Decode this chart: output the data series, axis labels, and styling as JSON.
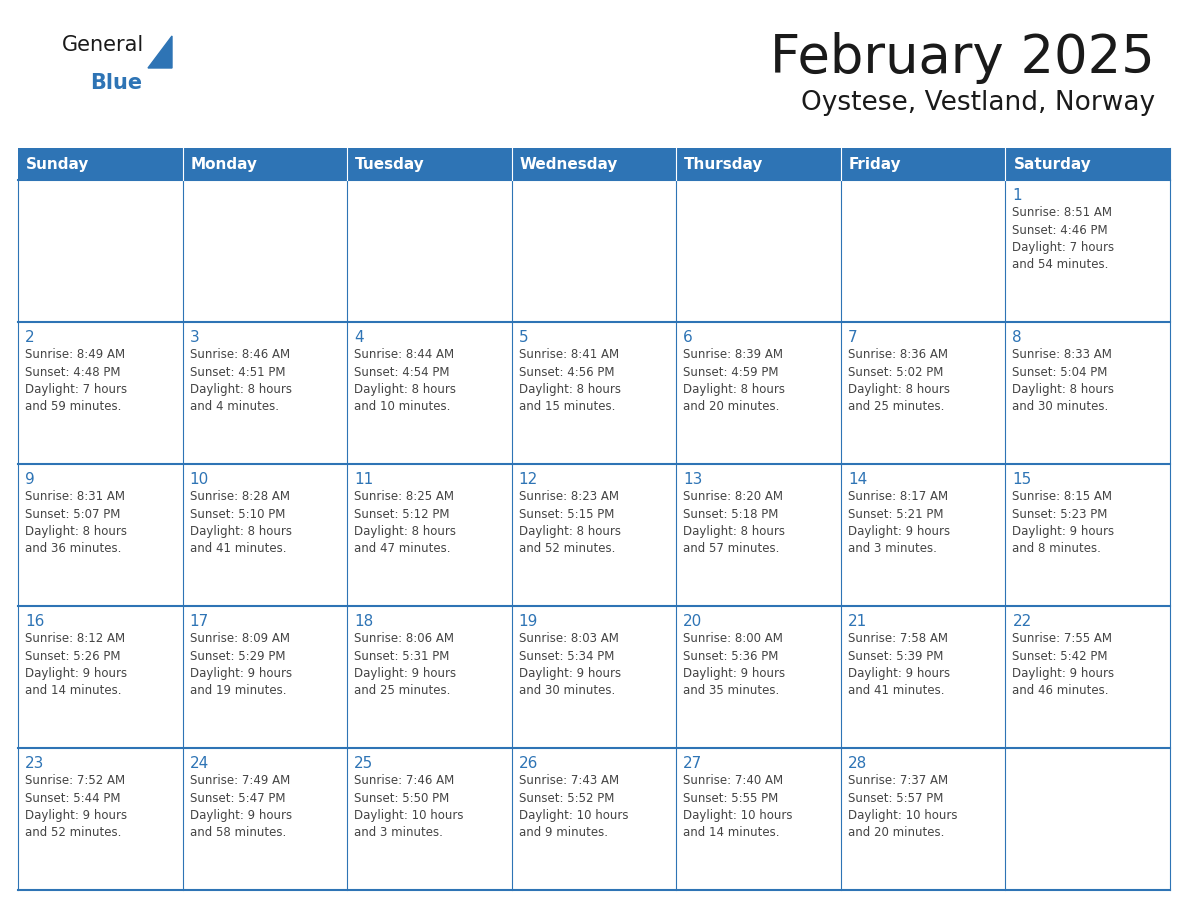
{
  "title": "February 2025",
  "subtitle": "Oystese, Vestland, Norway",
  "days_of_week": [
    "Sunday",
    "Monday",
    "Tuesday",
    "Wednesday",
    "Thursday",
    "Friday",
    "Saturday"
  ],
  "header_bg": "#2E74B5",
  "header_text_color": "#FFFFFF",
  "cell_border_color": "#2E74B5",
  "day_number_color": "#2E74B5",
  "info_text_color": "#444444",
  "background_color": "#FFFFFF",
  "logo_general_color": "#1a1a1a",
  "logo_blue_color": "#2E74B5",
  "calendar_data": [
    [
      {
        "day": null,
        "info": ""
      },
      {
        "day": null,
        "info": ""
      },
      {
        "day": null,
        "info": ""
      },
      {
        "day": null,
        "info": ""
      },
      {
        "day": null,
        "info": ""
      },
      {
        "day": null,
        "info": ""
      },
      {
        "day": 1,
        "info": "Sunrise: 8:51 AM\nSunset: 4:46 PM\nDaylight: 7 hours\nand 54 minutes."
      }
    ],
    [
      {
        "day": 2,
        "info": "Sunrise: 8:49 AM\nSunset: 4:48 PM\nDaylight: 7 hours\nand 59 minutes."
      },
      {
        "day": 3,
        "info": "Sunrise: 8:46 AM\nSunset: 4:51 PM\nDaylight: 8 hours\nand 4 minutes."
      },
      {
        "day": 4,
        "info": "Sunrise: 8:44 AM\nSunset: 4:54 PM\nDaylight: 8 hours\nand 10 minutes."
      },
      {
        "day": 5,
        "info": "Sunrise: 8:41 AM\nSunset: 4:56 PM\nDaylight: 8 hours\nand 15 minutes."
      },
      {
        "day": 6,
        "info": "Sunrise: 8:39 AM\nSunset: 4:59 PM\nDaylight: 8 hours\nand 20 minutes."
      },
      {
        "day": 7,
        "info": "Sunrise: 8:36 AM\nSunset: 5:02 PM\nDaylight: 8 hours\nand 25 minutes."
      },
      {
        "day": 8,
        "info": "Sunrise: 8:33 AM\nSunset: 5:04 PM\nDaylight: 8 hours\nand 30 minutes."
      }
    ],
    [
      {
        "day": 9,
        "info": "Sunrise: 8:31 AM\nSunset: 5:07 PM\nDaylight: 8 hours\nand 36 minutes."
      },
      {
        "day": 10,
        "info": "Sunrise: 8:28 AM\nSunset: 5:10 PM\nDaylight: 8 hours\nand 41 minutes."
      },
      {
        "day": 11,
        "info": "Sunrise: 8:25 AM\nSunset: 5:12 PM\nDaylight: 8 hours\nand 47 minutes."
      },
      {
        "day": 12,
        "info": "Sunrise: 8:23 AM\nSunset: 5:15 PM\nDaylight: 8 hours\nand 52 minutes."
      },
      {
        "day": 13,
        "info": "Sunrise: 8:20 AM\nSunset: 5:18 PM\nDaylight: 8 hours\nand 57 minutes."
      },
      {
        "day": 14,
        "info": "Sunrise: 8:17 AM\nSunset: 5:21 PM\nDaylight: 9 hours\nand 3 minutes."
      },
      {
        "day": 15,
        "info": "Sunrise: 8:15 AM\nSunset: 5:23 PM\nDaylight: 9 hours\nand 8 minutes."
      }
    ],
    [
      {
        "day": 16,
        "info": "Sunrise: 8:12 AM\nSunset: 5:26 PM\nDaylight: 9 hours\nand 14 minutes."
      },
      {
        "day": 17,
        "info": "Sunrise: 8:09 AM\nSunset: 5:29 PM\nDaylight: 9 hours\nand 19 minutes."
      },
      {
        "day": 18,
        "info": "Sunrise: 8:06 AM\nSunset: 5:31 PM\nDaylight: 9 hours\nand 25 minutes."
      },
      {
        "day": 19,
        "info": "Sunrise: 8:03 AM\nSunset: 5:34 PM\nDaylight: 9 hours\nand 30 minutes."
      },
      {
        "day": 20,
        "info": "Sunrise: 8:00 AM\nSunset: 5:36 PM\nDaylight: 9 hours\nand 35 minutes."
      },
      {
        "day": 21,
        "info": "Sunrise: 7:58 AM\nSunset: 5:39 PM\nDaylight: 9 hours\nand 41 minutes."
      },
      {
        "day": 22,
        "info": "Sunrise: 7:55 AM\nSunset: 5:42 PM\nDaylight: 9 hours\nand 46 minutes."
      }
    ],
    [
      {
        "day": 23,
        "info": "Sunrise: 7:52 AM\nSunset: 5:44 PM\nDaylight: 9 hours\nand 52 minutes."
      },
      {
        "day": 24,
        "info": "Sunrise: 7:49 AM\nSunset: 5:47 PM\nDaylight: 9 hours\nand 58 minutes."
      },
      {
        "day": 25,
        "info": "Sunrise: 7:46 AM\nSunset: 5:50 PM\nDaylight: 10 hours\nand 3 minutes."
      },
      {
        "day": 26,
        "info": "Sunrise: 7:43 AM\nSunset: 5:52 PM\nDaylight: 10 hours\nand 9 minutes."
      },
      {
        "day": 27,
        "info": "Sunrise: 7:40 AM\nSunset: 5:55 PM\nDaylight: 10 hours\nand 14 minutes."
      },
      {
        "day": 28,
        "info": "Sunrise: 7:37 AM\nSunset: 5:57 PM\nDaylight: 10 hours\nand 20 minutes."
      },
      {
        "day": null,
        "info": ""
      }
    ]
  ]
}
